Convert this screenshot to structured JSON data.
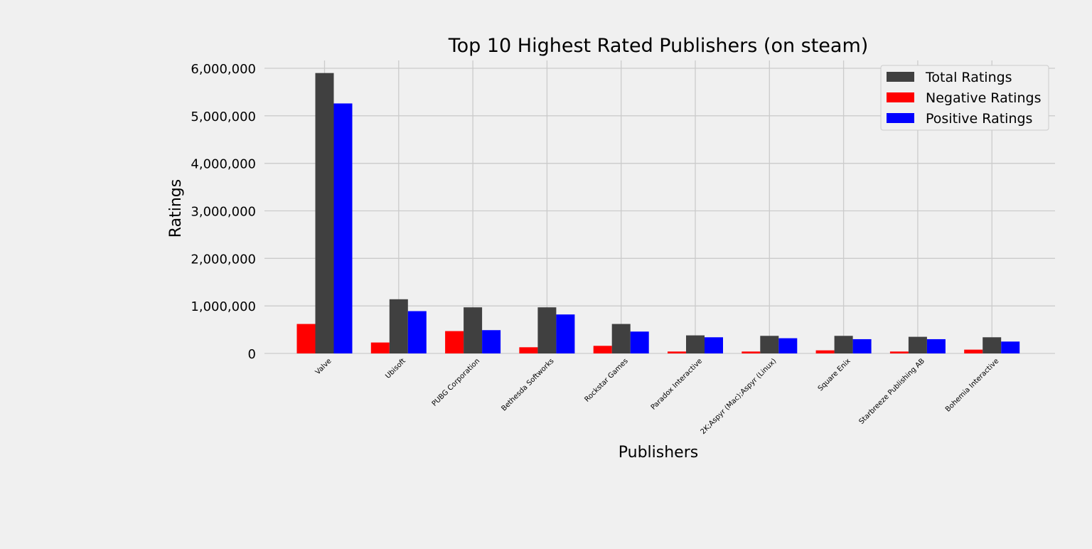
{
  "chart_data": {
    "type": "bar",
    "title": "Top 10 Highest Rated Publishers (on steam)",
    "xlabel": "Publishers",
    "ylabel": "Ratings",
    "ylim": [
      0,
      6000000
    ],
    "yticks": [
      0,
      1000000,
      2000000,
      3000000,
      4000000,
      5000000,
      6000000
    ],
    "ytick_labels": [
      "0",
      "1,000,000",
      "2,000,000",
      "3,000,000",
      "4,000,000",
      "5,000,000",
      "6,000,000"
    ],
    "categories": [
      "Valve",
      "Ubisoft",
      "PUBG Corporation",
      "Bethesda Softworks",
      "Rockstar Games",
      "Paradox Interactive",
      "2K;Aspyr (Mac);Aspyr (Linux)",
      "Square Enix",
      "Starbreeze Publishing AB",
      "Bohemia Interactive"
    ],
    "series": [
      {
        "name": "Negative Ratings",
        "color": "#ff0000",
        "values": [
          620000,
          230000,
          470000,
          130000,
          160000,
          40000,
          40000,
          65000,
          40000,
          80000
        ]
      },
      {
        "name": "Total Ratings",
        "color": "#404040",
        "values": [
          5900000,
          1140000,
          970000,
          970000,
          620000,
          380000,
          370000,
          370000,
          350000,
          340000
        ]
      },
      {
        "name": "Positive Ratings",
        "color": "#0000ff",
        "values": [
          5260000,
          890000,
          490000,
          820000,
          460000,
          340000,
          320000,
          300000,
          300000,
          250000
        ]
      }
    ],
    "legend": {
      "position": "top-right",
      "order": [
        "Total Ratings",
        "Negative Ratings",
        "Positive Ratings"
      ]
    },
    "grid": true,
    "background": "#f0f0f0",
    "grid_color": "#cbcbcb"
  }
}
